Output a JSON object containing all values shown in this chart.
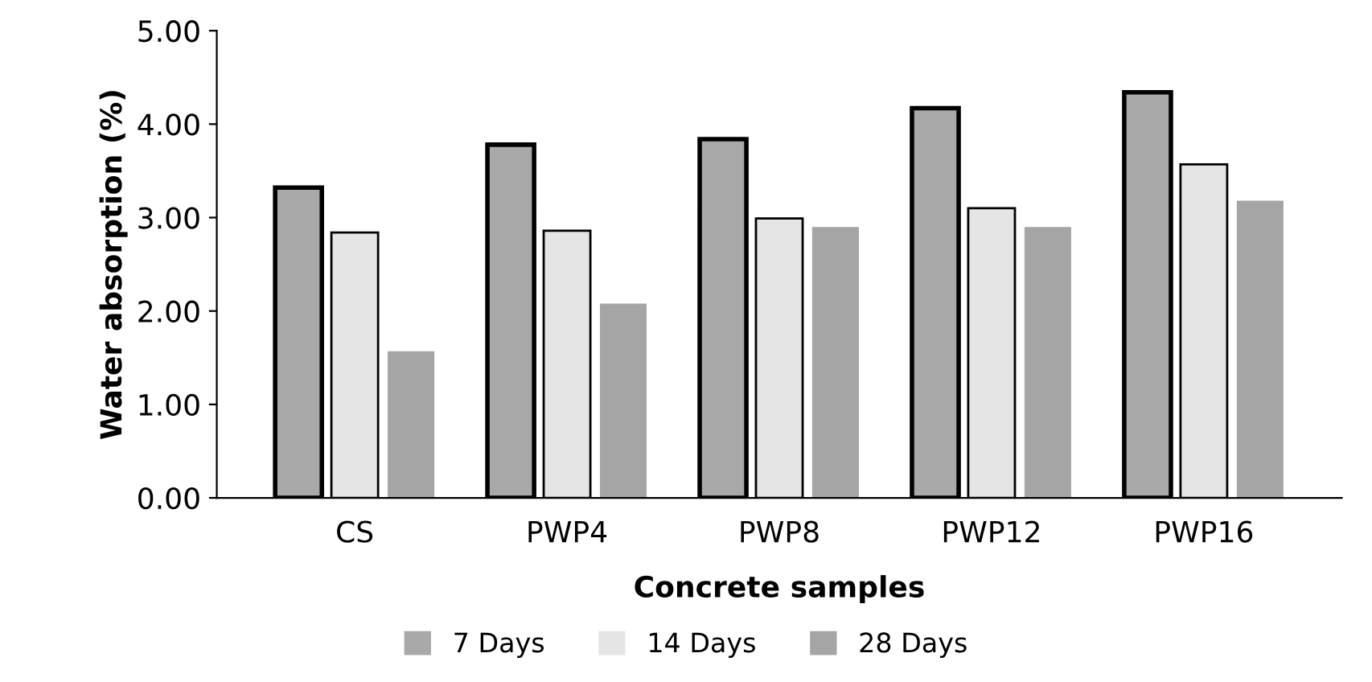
{
  "chart_data": {
    "type": "bar",
    "xlabel": "Concrete samples",
    "ylabel": "Water absorption (%)",
    "categories": [
      "CS",
      "PWP4",
      "PWP8",
      "PWP12",
      "PWP16"
    ],
    "series": [
      {
        "name": "7 Days",
        "color": "#a9a9a9",
        "values": [
          3.32,
          3.78,
          3.84,
          4.17,
          4.34
        ]
      },
      {
        "name": "14 Days",
        "color": "#e5e5e5",
        "values": [
          2.84,
          2.86,
          2.99,
          3.1,
          3.57
        ]
      },
      {
        "name": "28 Days",
        "color": "#a5a5a5",
        "values": [
          1.57,
          2.08,
          2.9,
          2.9,
          3.18
        ]
      }
    ],
    "ylim": [
      0,
      5
    ],
    "yticks": [
      {
        "value": 0,
        "label": "0.00"
      },
      {
        "value": 1,
        "label": "1.00"
      },
      {
        "value": 2,
        "label": "2.00"
      },
      {
        "value": 3,
        "label": "3.00"
      },
      {
        "value": 4,
        "label": "4.00"
      },
      {
        "value": 5,
        "label": "5.00"
      }
    ],
    "grid": false,
    "legend": "bottom"
  }
}
